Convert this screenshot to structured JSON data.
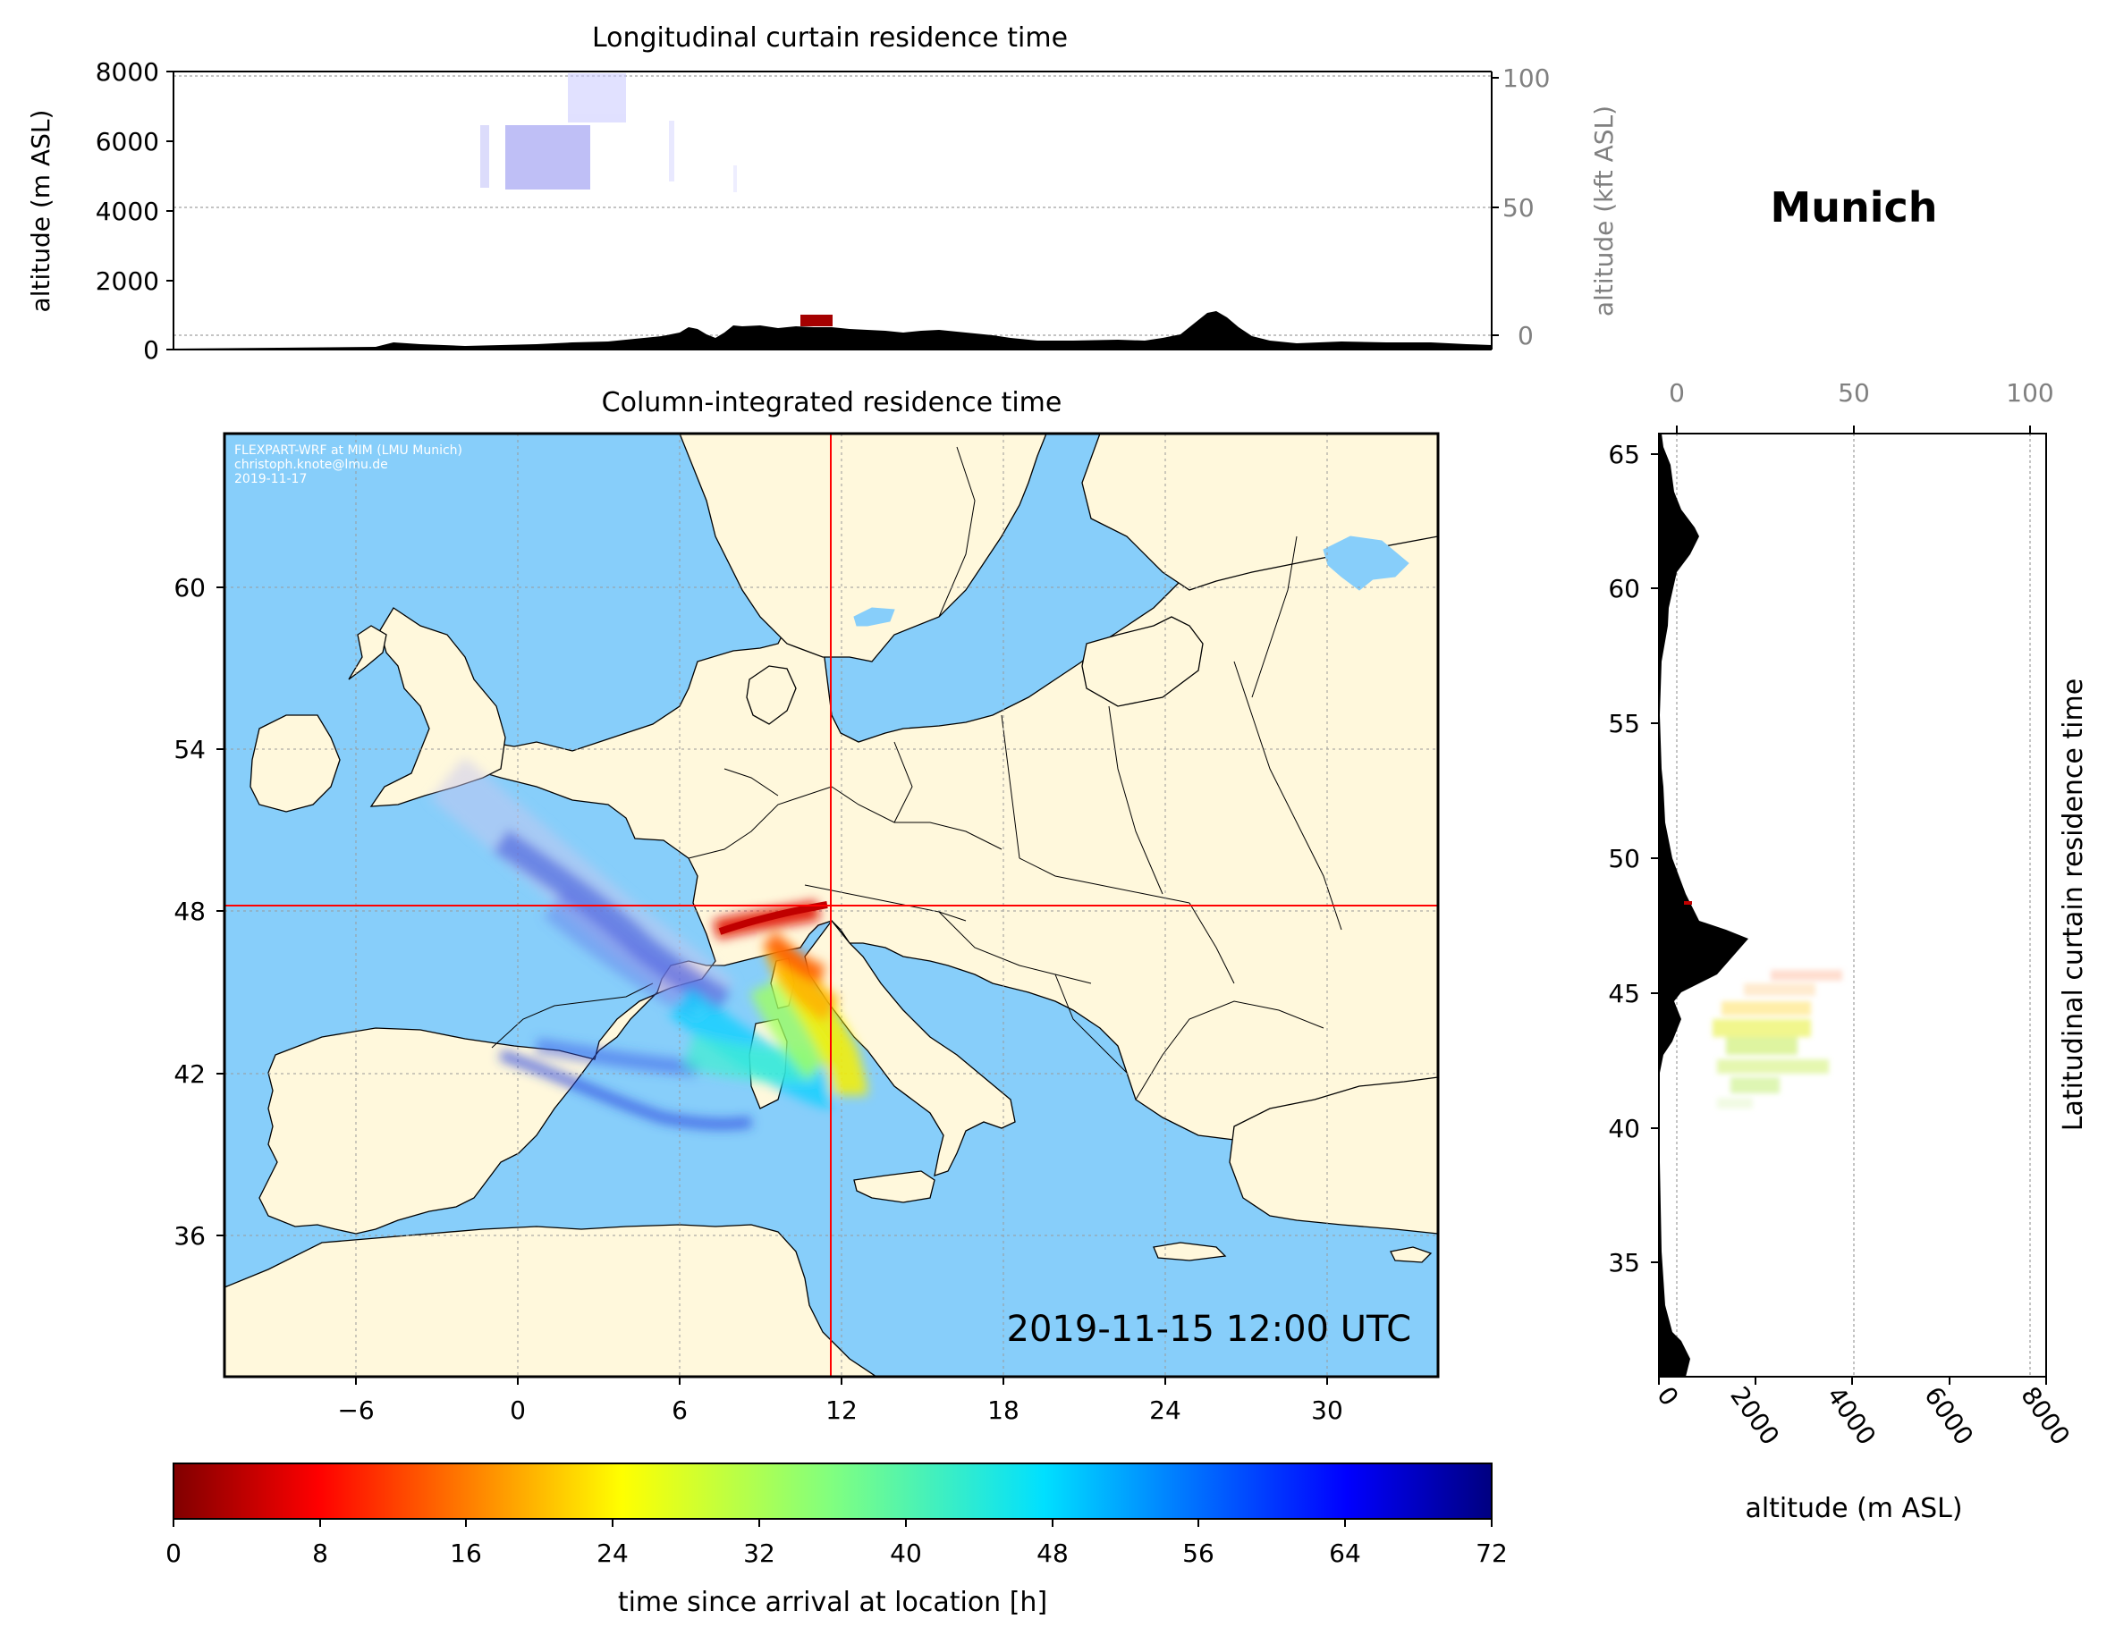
{
  "top_panel": {
    "title": "Longitudinal curtain residence time",
    "ylabel_left": "altitude (m ASL)",
    "ylabel_right": "altitude (kft ASL)",
    "yticks_left": [
      "0",
      "2000",
      "4000",
      "6000",
      "8000"
    ],
    "yticks_right": [
      "0",
      "50",
      "100"
    ]
  },
  "location_title": "Munich",
  "map_panel": {
    "title": "Column-integrated residence time",
    "credit_lines": [
      "FLEXPART-WRF at MIM (LMU Munich)",
      "christoph.knote@lmu.de",
      "2019-11-17"
    ],
    "timestamp": "2019-11-15 12:00 UTC",
    "xticks": [
      "−6",
      "0",
      "6",
      "12",
      "18",
      "24",
      "30"
    ],
    "yticks": [
      "36",
      "42",
      "48",
      "54",
      "60"
    ],
    "release_lon": 11.6,
    "release_lat": 48.1,
    "colors": {
      "ocean": "#87cefa",
      "land": "#fff8dc",
      "crosshair": "#ff0000"
    }
  },
  "right_panel": {
    "ylabel_right": "Latitudinal curtain residence time",
    "xlabel": "altitude (m ASL)",
    "xticks_bottom": [
      "0",
      "2000",
      "4000",
      "6000",
      "8000"
    ],
    "xticks_top": [
      "0",
      "50",
      "100"
    ],
    "yticks": [
      "35",
      "40",
      "45",
      "50",
      "55",
      "60",
      "65"
    ]
  },
  "colorbar": {
    "label": "time since arrival at location [h]",
    "ticks": [
      "0",
      "8",
      "16",
      "24",
      "32",
      "40",
      "48",
      "56",
      "64",
      "72"
    ],
    "range": [
      0,
      72
    ],
    "colormap": "jet_r"
  }
}
